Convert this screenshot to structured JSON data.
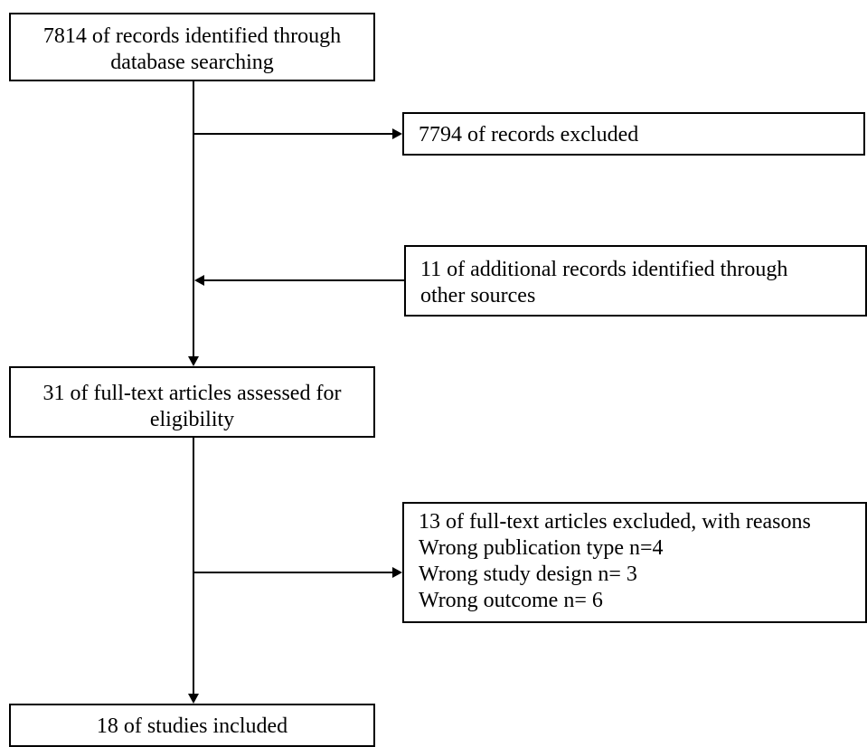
{
  "flow": {
    "identified": {
      "lines": [
        "7814 of records identified through",
        "database searching"
      ]
    },
    "records_excluded": {
      "lines": [
        "7794 of records excluded"
      ]
    },
    "additional_records": {
      "lines": [
        "11 of additional records identified through",
        "other sources"
      ]
    },
    "fulltext_assessed": {
      "lines": [
        "31 of full-text articles assessed for",
        "eligibility"
      ]
    },
    "fulltext_excluded": {
      "lines": [
        "13 of full-text articles excluded, with reasons",
        "Wrong publication type n=4",
        "Wrong study design n= 3",
        "Wrong outcome n= 6"
      ]
    },
    "included": {
      "lines": [
        "18 of studies included"
      ]
    }
  }
}
